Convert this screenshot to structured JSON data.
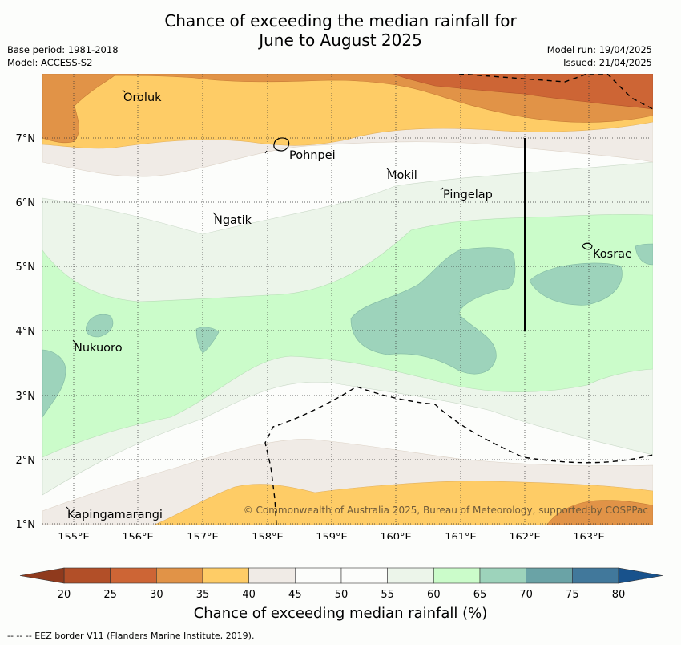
{
  "title_line1": "Chance of exceeding the median rainfall for",
  "title_line2": "June to August 2025",
  "meta_left": [
    "Base period: 1981-2018",
    "Model: ACCESS-S2"
  ],
  "meta_right": [
    "Model run: 19/04/2025",
    "Issued: 21/04/2025"
  ],
  "map": {
    "lon_labels": [
      "155°E",
      "156°E",
      "157°E",
      "158°E",
      "159°E",
      "160°E",
      "161°E",
      "162°E",
      "163°E"
    ],
    "lat_labels": [
      "7°N",
      "6°N",
      "5°N",
      "4°N",
      "3°N",
      "2°N",
      "1°N"
    ],
    "places": [
      "Oroluk",
      "Pohnpei",
      "Mokil",
      "Pingelap",
      "Ngatik",
      "Kosrae",
      "Nukuoro",
      "Kapingamarangi"
    ],
    "copyright": "© Commonwealth of Australia 2025, Bureau of Meteorology, supported by COSPPac"
  },
  "colorbar": {
    "ticks": [
      "20",
      "25",
      "30",
      "35",
      "40",
      "45",
      "50",
      "55",
      "60",
      "65",
      "70",
      "75",
      "80"
    ],
    "colors": [
      "#b24f28",
      "#cd6535",
      "#e19347",
      "#fecc66",
      "#f0ebe6",
      "#fcfdfb",
      "#fcfdfb",
      "#ecf5ea",
      "#cbfcca",
      "#9dd3bb",
      "#6aa3a6",
      "#41789b"
    ],
    "under_color": "#8f3a1d",
    "over_color": "#18528c",
    "title": "Chance of exceeding median rainfall (%)"
  },
  "footnote": "--  --  -- EEZ border V11 (Flanders Marine Institute, 2019)."
}
